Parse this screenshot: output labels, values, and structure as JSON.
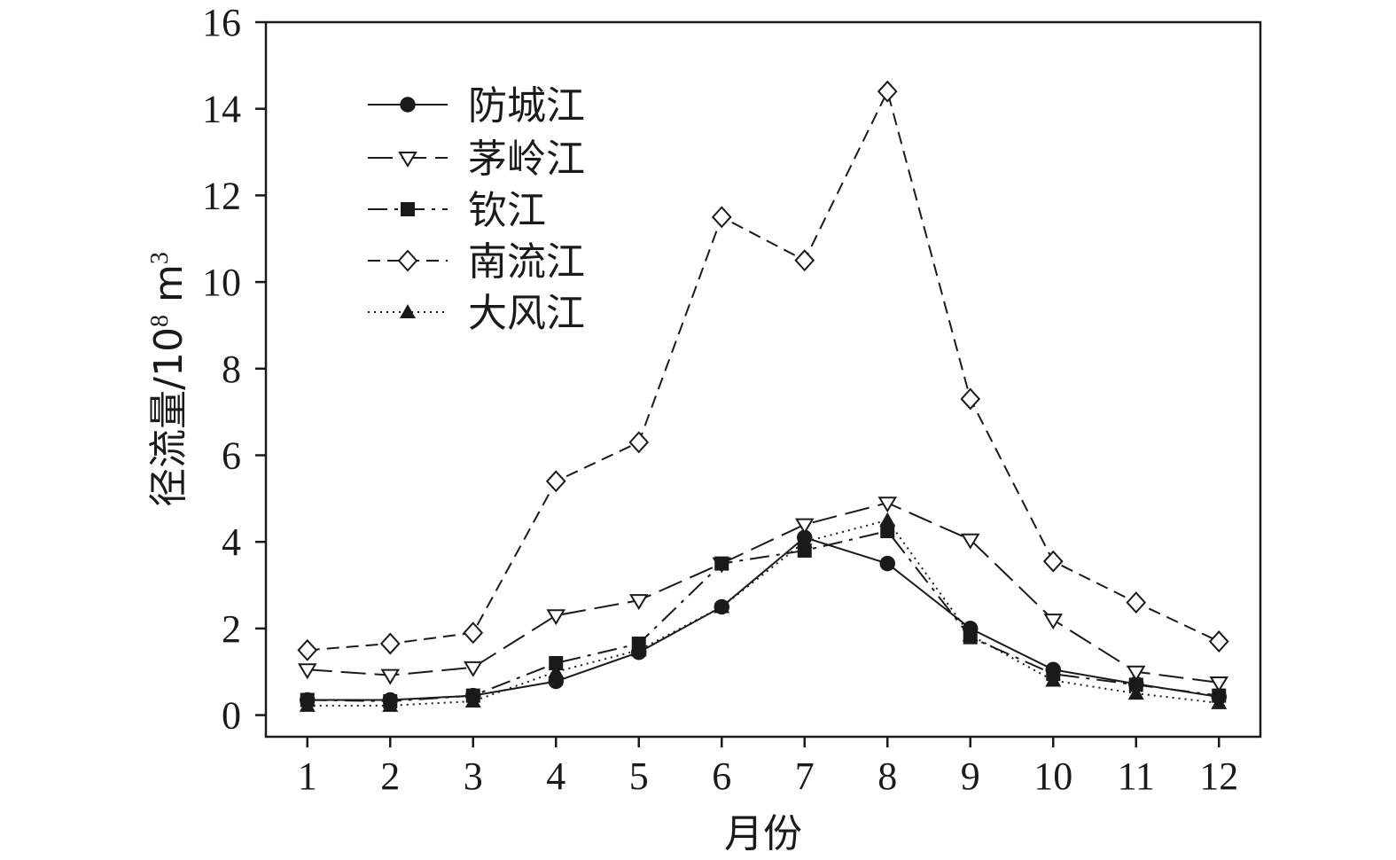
{
  "chart_data": {
    "type": "line",
    "xlabel": "月份",
    "ylabel": {
      "prefix": "径流量/10",
      "superscript1": "8",
      "unit": " m",
      "superscript2": "3"
    },
    "x": [
      1,
      2,
      3,
      4,
      5,
      6,
      7,
      8,
      9,
      10,
      11,
      12
    ],
    "x_ticks": [
      "1",
      "2",
      "3",
      "4",
      "5",
      "6",
      "7",
      "8",
      "9",
      "10",
      "11",
      "12"
    ],
    "xlim": [
      0.5,
      12.5
    ],
    "ylim": [
      -0.5,
      16
    ],
    "y_ticks": [
      "0",
      "2",
      "4",
      "6",
      "8",
      "10",
      "12",
      "14",
      "16"
    ],
    "grid": false,
    "legend_position": "top-left",
    "series": [
      {
        "name": "防城江",
        "marker": "filled-circle",
        "line_style": "solid",
        "values": [
          0.35,
          0.35,
          0.45,
          0.78,
          1.45,
          2.5,
          4.1,
          3.5,
          2.0,
          1.05,
          0.72,
          0.42
        ]
      },
      {
        "name": "茅岭江",
        "marker": "open-triangle-down",
        "line_style": "long-dash",
        "values": [
          1.05,
          0.92,
          1.1,
          2.3,
          2.65,
          3.5,
          4.4,
          4.9,
          4.05,
          2.2,
          1.0,
          0.75
        ]
      },
      {
        "name": "钦江",
        "marker": "filled-square",
        "line_style": "dash-dot",
        "values": [
          0.35,
          0.32,
          0.45,
          1.2,
          1.65,
          3.5,
          3.8,
          4.25,
          1.8,
          0.95,
          0.7,
          0.45
        ]
      },
      {
        "name": "南流江",
        "marker": "open-diamond",
        "line_style": "dash",
        "values": [
          1.5,
          1.65,
          1.9,
          5.4,
          6.3,
          11.5,
          10.5,
          14.4,
          7.3,
          3.55,
          2.6,
          1.7
        ]
      },
      {
        "name": "大风江",
        "marker": "filled-triangle-up",
        "line_style": "dotted",
        "values": [
          0.22,
          0.22,
          0.32,
          1.0,
          1.5,
          2.5,
          4.0,
          4.5,
          1.85,
          0.8,
          0.5,
          0.28
        ]
      }
    ]
  }
}
